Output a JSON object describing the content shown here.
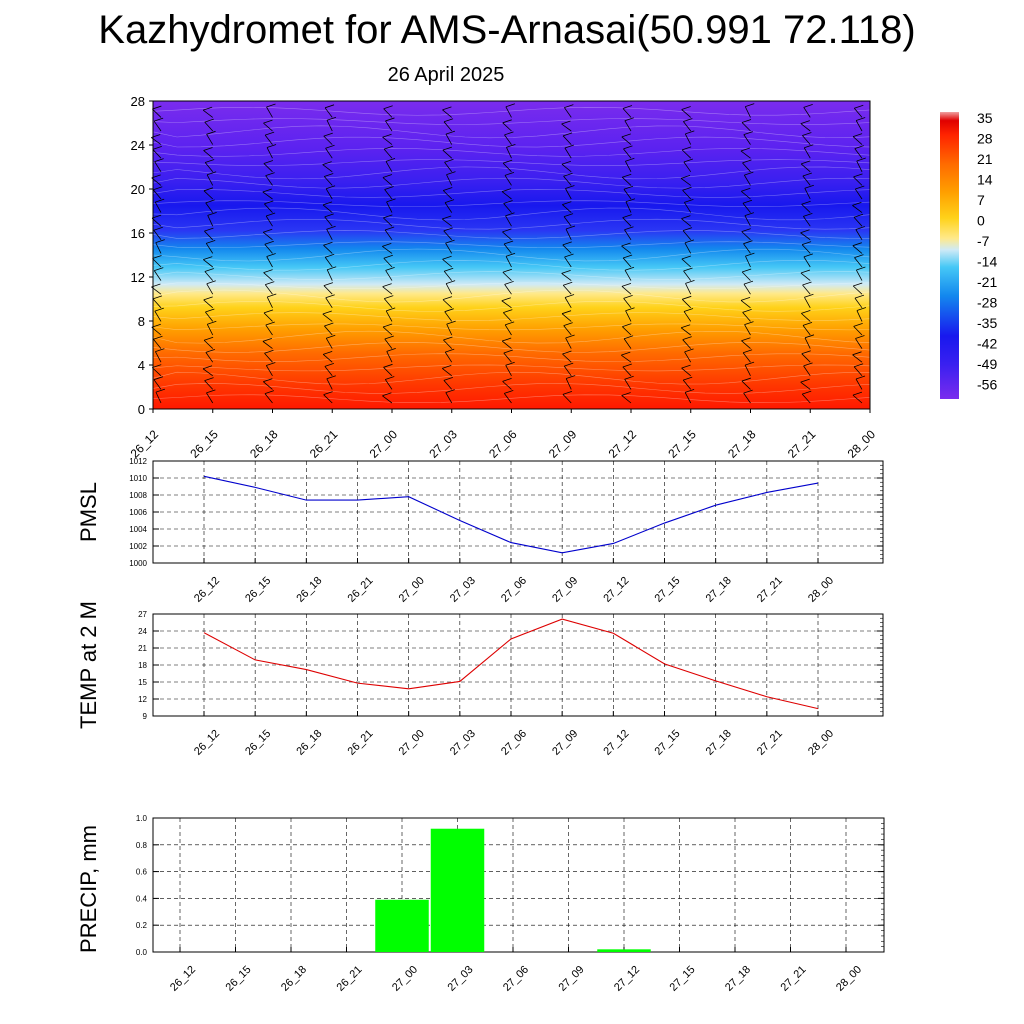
{
  "title": "Kazhydromet for AMS-Arnasai(50.991 72.118)",
  "subtitle": "26 April 2025",
  "time_labels": [
    "26_12",
    "26_15",
    "26_18",
    "26_21",
    "27_00",
    "27_03",
    "27_06",
    "27_09",
    "27_12",
    "27_15",
    "27_18",
    "27_21",
    "28_00"
  ],
  "colors": {
    "pmsl_line": "#0000cc",
    "temp_line": "#dd0000",
    "precip_bar": "#00ff00",
    "grid": "#000000"
  },
  "chart_data": [
    {
      "type": "heatmap",
      "name": "temperature-height-section",
      "x": [
        "26_12",
        "26_15",
        "26_18",
        "26_21",
        "27_00",
        "27_03",
        "27_06",
        "27_09",
        "27_12",
        "27_15",
        "27_18",
        "27_21",
        "28_00"
      ],
      "yticks": [
        0,
        4,
        8,
        12,
        16,
        20,
        24,
        28
      ],
      "ylim": [
        0,
        28
      ],
      "colorbar_labels": [
        "35",
        "28",
        "21",
        "14",
        "7",
        "0",
        "-7",
        "-14",
        "-21",
        "-28",
        "-35",
        "-42",
        "-49",
        "-56"
      ],
      "colorbar_range": [
        -63,
        35
      ],
      "wind_barbs": true
    },
    {
      "type": "line",
      "ylabel": "PMSL",
      "x": [
        "26_12",
        "26_15",
        "26_18",
        "26_21",
        "27_00",
        "27_03",
        "27_06",
        "27_09",
        "27_12",
        "27_15",
        "27_18",
        "27_21",
        "28_00"
      ],
      "values": [
        1010.2,
        1008.9,
        1007.4,
        1007.4,
        1007.8,
        1005.0,
        1002.4,
        1001.2,
        1002.3,
        1004.7,
        1006.8,
        1008.3,
        1009.4
      ],
      "yticks": [
        "1000",
        "1002",
        "1004",
        "1006",
        "1008",
        "1010",
        "1012"
      ],
      "ylim": [
        1000,
        1012
      ],
      "grid": true
    },
    {
      "type": "line",
      "ylabel": "TEMP at 2 M",
      "x": [
        "26_12",
        "26_15",
        "26_18",
        "26_21",
        "27_00",
        "27_03",
        "27_06",
        "27_09",
        "27_12",
        "27_15",
        "27_18",
        "27_21",
        "28_00"
      ],
      "values": [
        23.7,
        18.9,
        17.2,
        14.8,
        13.8,
        15.1,
        22.6,
        26.1,
        23.6,
        18.2,
        15.2,
        12.4,
        10.3
      ],
      "yticks": [
        "9",
        "12",
        "15",
        "18",
        "21",
        "24",
        "27"
      ],
      "ylim": [
        9,
        27
      ],
      "grid": true
    },
    {
      "type": "bar",
      "ylabel": "PRECIP, mm",
      "categories": [
        "26_12",
        "26_15",
        "26_18",
        "26_21",
        "27_00",
        "27_03",
        "27_06",
        "27_09",
        "27_12",
        "27_15",
        "27_18",
        "27_21",
        "28_00"
      ],
      "values": [
        0,
        0,
        0,
        0,
        0.39,
        0.92,
        0,
        0,
        0.02,
        0,
        0,
        0,
        0
      ],
      "yticks": [
        "0.0",
        "0.2",
        "0.4",
        "0.6",
        "0.8",
        "1.0"
      ],
      "ylim": [
        0,
        1.0
      ],
      "grid": true
    }
  ]
}
